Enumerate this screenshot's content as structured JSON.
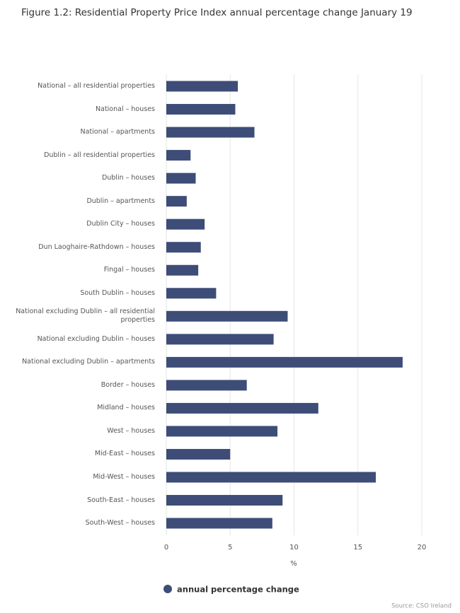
{
  "chart_data": {
    "type": "bar",
    "orientation": "horizontal",
    "title": "Figure 1.2: Residential Property Price Index annual percentage change January 19",
    "categories": [
      "National – all residential properties",
      "National – houses",
      "National – apartments",
      "Dublin – all residential properties",
      "Dublin – houses",
      "Dublin – apartments",
      "Dublin City – houses",
      "Dun Laoghaire-Rathdown – houses",
      "Fingal – houses",
      "South Dublin – houses",
      "National excluding Dublin – all residential properties",
      "National excluding Dublin – houses",
      "National excluding Dublin – apartments",
      "Border – houses",
      "Midland – houses",
      "West – houses",
      "Mid-East – houses",
      "Mid-West – houses",
      "South-East – houses",
      "South-West – houses"
    ],
    "series": [
      {
        "name": "annual percentage change",
        "color": "#3d4d78",
        "values": [
          5.6,
          5.4,
          6.9,
          1.9,
          2.3,
          1.6,
          3.0,
          2.7,
          2.5,
          3.9,
          9.5,
          8.4,
          18.5,
          6.3,
          11.9,
          8.7,
          5.0,
          16.4,
          9.1,
          8.3
        ]
      }
    ],
    "xlabel": "%",
    "xlim": [
      0,
      20
    ],
    "xticks": [
      0,
      5,
      10,
      15,
      20
    ],
    "grid": true,
    "source": "Source: CSO Ireland"
  }
}
